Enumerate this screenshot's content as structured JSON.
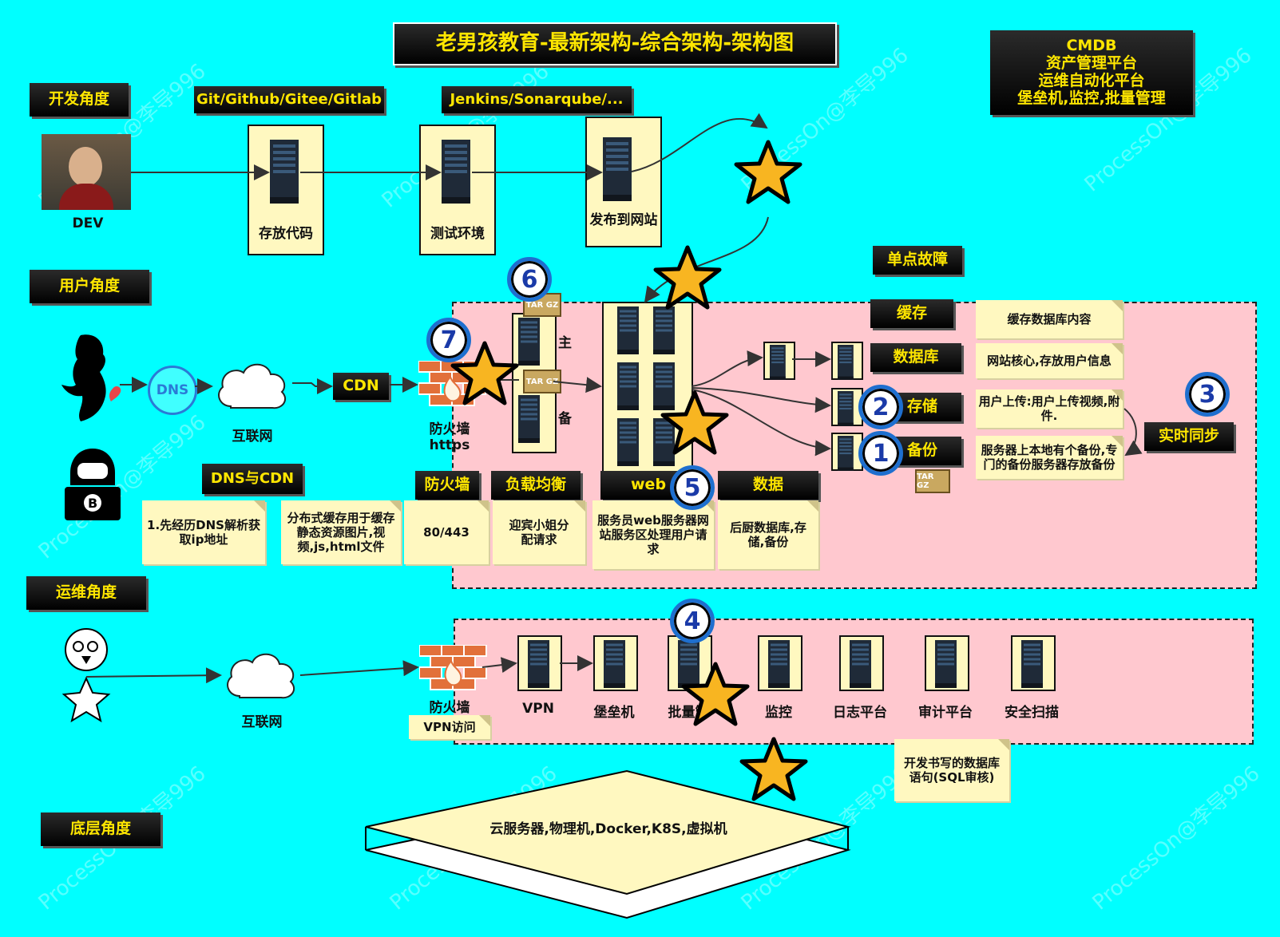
{
  "title": "老男孩教育-最新架构-综合架构-架构图",
  "cmdb": [
    "CMDB",
    "资产管理平台",
    "运维自动化平台",
    "堡垒机,监控,批量管理"
  ],
  "perspectives": {
    "dev": "开发角度",
    "user": "用户角度",
    "ops": "运维角度",
    "base": "底层角度"
  },
  "dev": {
    "person_label": "DEV",
    "git_label": "Git/Github/Gitee/Gitlab",
    "jenkins_label": "Jenkins/Sonarqube/...",
    "store_code": "存放代码",
    "test_env": "测试环境",
    "publish": "发布到网站"
  },
  "single_point": "单点故障",
  "user": {
    "dns_text": "DNS",
    "internet": "互联网",
    "cdn": "CDN",
    "firewall": "防火墙\nhttps",
    "master": "主",
    "backup_lb": "备",
    "tar": "TAR GZ",
    "dns_cdn": "DNS与CDN"
  },
  "right": {
    "cache": "缓存",
    "database": "数据库",
    "storage": "存储",
    "backup": "备份",
    "realtime": "实时同步",
    "cache_note": "缓存数据库内容",
    "db_note": "网站核心,存放用户信息",
    "upload_note": "用户上传:用户上传视频,附件.",
    "backup_note": "服务器上本地有个备份,专门的备份服务器存放备份"
  },
  "bottom_labels": {
    "firewall": "防火墙",
    "lb": "负载均衡",
    "web": "web",
    "data": "数据"
  },
  "notes": {
    "dns": "1.先经历DNS解析获取ip地址",
    "cdn": "分布式缓存用于缓存静态资源图片,视频,js,html文件",
    "fw": "80/443",
    "lb": "迎宾小姐分配请求",
    "web": "服务员web服务器网站服务区处理用户请求",
    "data": "后厨数据库,存储,备份",
    "vpn": "VPN访问",
    "sql": "开发书写的数据库语句(SQL审核)"
  },
  "ops": {
    "internet": "互联网",
    "firewall": "防火墙",
    "servers": [
      "VPN",
      "堡垒机",
      "批量管",
      "监控",
      "日志平台",
      "审计平台",
      "安全扫描"
    ]
  },
  "base": "云服务器,物理机,Docker,K8S,虚拟机",
  "circles": [
    "1",
    "2",
    "3",
    "4",
    "5",
    "6",
    "7"
  ],
  "watermark": "ProcessOn@李导996"
}
